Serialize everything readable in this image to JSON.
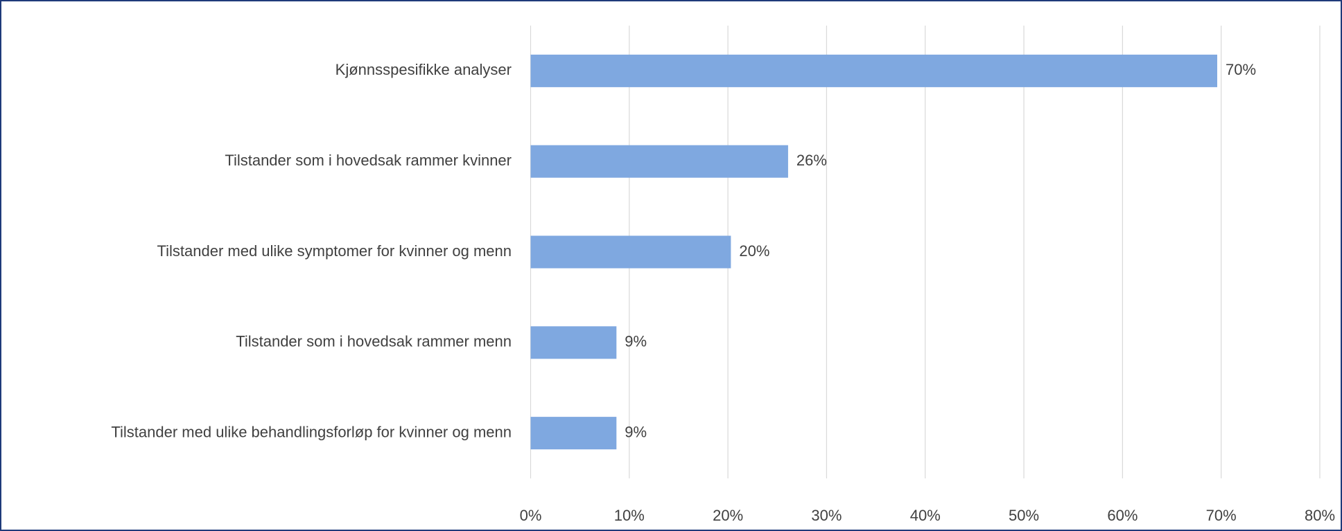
{
  "chart_data": {
    "type": "barh",
    "categories": [
      "Kjønnsspesifikke analyser",
      "Tilstander som i hovedsak rammer kvinner",
      "Tilstander med ulike symptomer for kvinner og menn",
      "Tilstander som i hovedsak rammer menn",
      "Tilstander med ulike behandlingsforløp for kvinner og menn"
    ],
    "values": [
      69.6,
      26.1,
      20.3,
      8.7,
      8.7
    ],
    "value_labels": [
      "70%",
      "26%",
      "20%",
      "9%",
      "9%"
    ],
    "color": "#7fa8e0",
    "xlim": [
      0,
      80
    ],
    "xticks": [
      {
        "value": 0,
        "label": "0%"
      },
      {
        "value": 10,
        "label": "10%"
      },
      {
        "value": 20,
        "label": "20%"
      },
      {
        "value": 30,
        "label": "30%"
      },
      {
        "value": 40,
        "label": "40%"
      },
      {
        "value": 50,
        "label": "50%"
      },
      {
        "value": 60,
        "label": "60%"
      },
      {
        "value": 70,
        "label": "70%"
      },
      {
        "value": 80,
        "label": "80%"
      }
    ],
    "grid": true
  }
}
